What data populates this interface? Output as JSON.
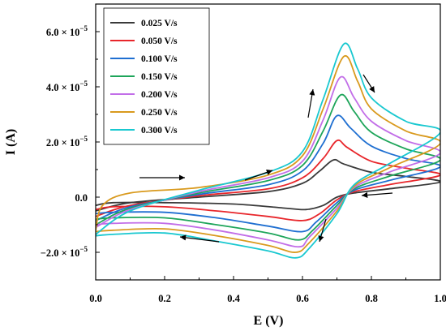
{
  "chart_data": {
    "type": "line",
    "xlabel": "E (V)",
    "ylabel": "I (A)",
    "xlim": [
      0.0,
      1.0
    ],
    "ylim": [
      -3e-05,
      7e-05
    ],
    "xticks": [
      "0.0",
      "0.2",
      "0.4",
      "0.6",
      "0.8",
      "1.0"
    ],
    "yticks": [
      {
        "value": 6e-05,
        "label": "6.0 × 10",
        "exp": "−5"
      },
      {
        "value": 4e-05,
        "label": "4.0 × 10",
        "exp": "−5"
      },
      {
        "value": 2e-05,
        "label": "2.0 × 10",
        "exp": "−5"
      },
      {
        "value": 0,
        "label": "0.0",
        "exp": ""
      },
      {
        "value": -2e-05,
        "label": "−2.0 × 10",
        "exp": "−5"
      }
    ],
    "legend_position": "top-left",
    "grid": false,
    "series": [
      {
        "name": "0.025 V/s",
        "color": "#3a3a3a",
        "scale": 0.35,
        "forward": [
          [
            0.0,
            -5e-06
          ],
          [
            0.1,
            -2e-06
          ],
          [
            0.3,
            0.0
          ],
          [
            0.5,
            2e-06
          ],
          [
            0.6,
            5e-06
          ],
          [
            0.65,
            9.5e-06
          ],
          [
            0.69,
            1.35e-05
          ],
          [
            0.72,
            1.2e-05
          ],
          [
            0.8,
            9e-06
          ],
          [
            0.9,
            7.5e-06
          ],
          [
            1.0,
            5.5e-06
          ]
        ],
        "reverse": [
          [
            1.0,
            5.5e-06
          ],
          [
            0.85,
            3e-06
          ],
          [
            0.75,
            1.5e-06
          ],
          [
            0.7,
            0.0
          ],
          [
            0.66,
            -3e-06
          ],
          [
            0.61,
            -4.5e-06
          ],
          [
            0.55,
            -4e-06
          ],
          [
            0.4,
            -2.5e-06
          ],
          [
            0.2,
            -2e-06
          ],
          [
            0.05,
            -2e-06
          ],
          [
            0.0,
            -3e-06
          ]
        ]
      },
      {
        "name": "0.050 V/s",
        "color": "#e8262b",
        "scale": 0.5,
        "forward": [
          [
            0.0,
            -7e-06
          ],
          [
            0.1,
            -3e-06
          ],
          [
            0.3,
            5e-07
          ],
          [
            0.5,
            3e-06
          ],
          [
            0.6,
            7e-06
          ],
          [
            0.66,
            1.4e-05
          ],
          [
            0.7,
            2.05e-05
          ],
          [
            0.73,
            1.8e-05
          ],
          [
            0.8,
            1.3e-05
          ],
          [
            0.9,
            1.05e-05
          ],
          [
            1.0,
            8e-06
          ]
        ],
        "reverse": [
          [
            1.0,
            8e-06
          ],
          [
            0.85,
            4.5e-06
          ],
          [
            0.75,
            2e-06
          ],
          [
            0.7,
            -1e-06
          ],
          [
            0.65,
            -6e-06
          ],
          [
            0.6,
            -8.5e-06
          ],
          [
            0.5,
            -7e-06
          ],
          [
            0.35,
            -5e-06
          ],
          [
            0.2,
            -3.5e-06
          ],
          [
            0.05,
            -3.5e-06
          ],
          [
            0.0,
            -4.5e-06
          ]
        ]
      },
      {
        "name": "0.100 V/s",
        "color": "#1f6fd1",
        "scale": 0.65,
        "forward": [
          [
            0.0,
            -8.5e-06
          ],
          [
            0.1,
            -3.5e-06
          ],
          [
            0.3,
            1e-06
          ],
          [
            0.5,
            4.5e-06
          ],
          [
            0.6,
            9.5e-06
          ],
          [
            0.66,
            1.95e-05
          ],
          [
            0.7,
            2.95e-05
          ],
          [
            0.74,
            2.5e-05
          ],
          [
            0.8,
            1.85e-05
          ],
          [
            0.9,
            1.4e-05
          ],
          [
            1.0,
            1.1e-05
          ]
        ],
        "reverse": [
          [
            1.0,
            1.1e-05
          ],
          [
            0.85,
            6e-06
          ],
          [
            0.75,
            2.5e-06
          ],
          [
            0.7,
            -2e-06
          ],
          [
            0.64,
            -9e-06
          ],
          [
            0.6,
            -1.25e-05
          ],
          [
            0.5,
            -1.05e-05
          ],
          [
            0.35,
            -7.5e-06
          ],
          [
            0.2,
            -5.5e-06
          ],
          [
            0.05,
            -5.5e-06
          ],
          [
            0.0,
            -6e-06
          ]
        ]
      },
      {
        "name": "0.150 V/s",
        "color": "#1ea55a",
        "scale": 0.8,
        "forward": [
          [
            0.0,
            -1e-05
          ],
          [
            0.1,
            -4e-06
          ],
          [
            0.3,
            1.5e-06
          ],
          [
            0.5,
            6e-06
          ],
          [
            0.6,
            1.15e-05
          ],
          [
            0.66,
            2.4e-05
          ],
          [
            0.71,
            3.7e-05
          ],
          [
            0.75,
            3.1e-05
          ],
          [
            0.8,
            2.35e-05
          ],
          [
            0.9,
            1.75e-05
          ],
          [
            1.0,
            1.35e-05
          ]
        ],
        "reverse": [
          [
            1.0,
            1.35e-05
          ],
          [
            0.85,
            7.5e-06
          ],
          [
            0.75,
            3e-06
          ],
          [
            0.7,
            -3e-06
          ],
          [
            0.63,
            -1.2e-05
          ],
          [
            0.59,
            -1.55e-05
          ],
          [
            0.5,
            -1.3e-05
          ],
          [
            0.35,
            -1e-05
          ],
          [
            0.2,
            -7.5e-06
          ],
          [
            0.05,
            -7.5e-06
          ],
          [
            0.0,
            -8e-06
          ]
        ]
      },
      {
        "name": "0.200 V/s",
        "color": "#c26ee8",
        "scale": 0.9,
        "forward": [
          [
            0.0,
            -1.1e-05
          ],
          [
            0.1,
            -4.5e-06
          ],
          [
            0.3,
            2e-06
          ],
          [
            0.5,
            7e-06
          ],
          [
            0.6,
            1.3e-05
          ],
          [
            0.66,
            2.8e-05
          ],
          [
            0.71,
            4.35e-05
          ],
          [
            0.75,
            3.6e-05
          ],
          [
            0.8,
            2.75e-05
          ],
          [
            0.9,
            2.05e-05
          ],
          [
            1.0,
            1.6e-05
          ]
        ],
        "reverse": [
          [
            1.0,
            1.6e-05
          ],
          [
            0.85,
            9e-06
          ],
          [
            0.75,
            3.5e-06
          ],
          [
            0.7,
            -4e-06
          ],
          [
            0.62,
            -1.45e-05
          ],
          [
            0.59,
            -1.8e-05
          ],
          [
            0.5,
            -1.55e-05
          ],
          [
            0.35,
            -1.2e-05
          ],
          [
            0.2,
            -9.5e-06
          ],
          [
            0.05,
            -9.5e-06
          ],
          [
            0.0,
            -1e-05
          ]
        ]
      },
      {
        "name": "0.250 V/s",
        "color": "#d99a1e",
        "scale": 1.0,
        "forward": [
          [
            0.0,
            -1.2e-05
          ],
          [
            0.02,
            -3e-06
          ],
          [
            0.1,
            1.5e-06
          ],
          [
            0.3,
            3.5e-06
          ],
          [
            0.5,
            8e-06
          ],
          [
            0.6,
            1.5e-05
          ],
          [
            0.66,
            3.2e-05
          ],
          [
            0.72,
            5.1e-05
          ],
          [
            0.76,
            4.2e-05
          ],
          [
            0.8,
            3.2e-05
          ],
          [
            0.9,
            2.4e-05
          ],
          [
            1.0,
            1.95e-05
          ]
        ],
        "reverse": [
          [
            1.0,
            1.95e-05
          ],
          [
            0.85,
            1.05e-05
          ],
          [
            0.75,
            4e-06
          ],
          [
            0.7,
            -5e-06
          ],
          [
            0.62,
            -1.65e-05
          ],
          [
            0.58,
            -2e-05
          ],
          [
            0.5,
            -1.75e-05
          ],
          [
            0.35,
            -1.4e-05
          ],
          [
            0.2,
            -1.15e-05
          ],
          [
            0.05,
            -1.2e-05
          ],
          [
            0.0,
            -1.25e-05
          ]
        ]
      },
      {
        "name": "0.300 V/s",
        "color": "#19c8d0",
        "scale": 1.1,
        "forward": [
          [
            0.0,
            -1.35e-05
          ],
          [
            0.1,
            -5e-06
          ],
          [
            0.3,
            2.5e-06
          ],
          [
            0.5,
            9e-06
          ],
          [
            0.6,
            1.65e-05
          ],
          [
            0.66,
            3.55e-05
          ],
          [
            0.72,
            5.55e-05
          ],
          [
            0.76,
            4.65e-05
          ],
          [
            0.8,
            3.6e-05
          ],
          [
            0.9,
            2.75e-05
          ],
          [
            1.0,
            2.35e-05
          ]
        ],
        "reverse": [
          [
            1.0,
            2.35e-05
          ],
          [
            0.85,
            1.2e-05
          ],
          [
            0.75,
            4.5e-06
          ],
          [
            0.7,
            -6e-06
          ],
          [
            0.62,
            -1.85e-05
          ],
          [
            0.58,
            -2.2e-05
          ],
          [
            0.5,
            -1.95e-05
          ],
          [
            0.35,
            -1.6e-05
          ],
          [
            0.2,
            -1.3e-05
          ],
          [
            0.05,
            -1.35e-05
          ],
          [
            0.0,
            -1.4e-05
          ]
        ]
      }
    ]
  }
}
